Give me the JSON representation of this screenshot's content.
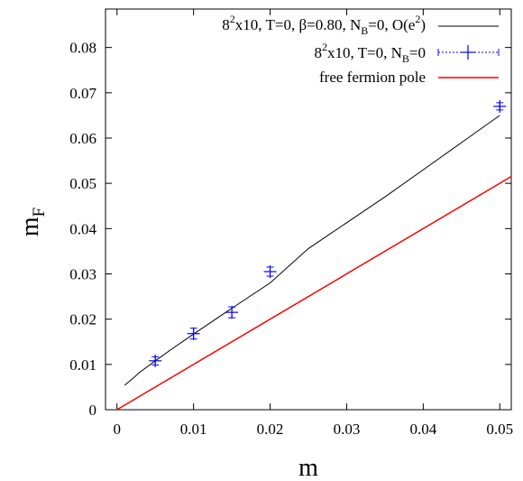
{
  "chart_data": {
    "type": "scatter",
    "title": "",
    "xlabel": "m",
    "ylabel": "m_F",
    "xlim": [
      -0.0015,
      0.0515
    ],
    "ylim": [
      0,
      0.0885
    ],
    "grid": false,
    "legend_position": "top-right",
    "x_ticks": [
      0,
      0.01,
      0.02,
      0.03,
      0.04,
      0.05
    ],
    "x_tick_labels": [
      "0",
      "0.01",
      "0.02",
      "0.03",
      "0.04",
      "0.05"
    ],
    "y_ticks": [
      0,
      0.01,
      0.02,
      0.03,
      0.04,
      0.05,
      0.06,
      0.07,
      0.08
    ],
    "y_tick_labels": [
      "0",
      "0.01",
      "0.02",
      "0.03",
      "0.04",
      "0.05",
      "0.06",
      "0.07",
      "0.08"
    ],
    "series": [
      {
        "name": "8²x10, T=0, β=0.80, N_B=0, O(e²)",
        "kind": "line",
        "color": "#000000",
        "x": [
          0.001,
          0.002,
          0.003,
          0.005,
          0.0075,
          0.01,
          0.015,
          0.02,
          0.025,
          0.03,
          0.035,
          0.04,
          0.045,
          0.05
        ],
        "y": [
          0.0054,
          0.0068,
          0.0083,
          0.0108,
          0.0138,
          0.0167,
          0.0224,
          0.028,
          0.0356,
          0.0413,
          0.047,
          0.053,
          0.059,
          0.065
        ]
      },
      {
        "name": "8²x10, T=0, N_B=0",
        "kind": "points",
        "color": "#0000ff",
        "x": [
          0.005,
          0.01,
          0.015,
          0.02,
          0.05
        ],
        "y": [
          0.0108,
          0.0168,
          0.0215,
          0.0305,
          0.067
        ],
        "yerr": [
          0.0009,
          0.0012,
          0.0012,
          0.001,
          0.0008
        ]
      },
      {
        "name": "free fermion pole",
        "kind": "line",
        "color": "#ff0000",
        "x": [
          0.0,
          0.0515
        ],
        "y": [
          0.0,
          0.0515
        ]
      }
    ]
  },
  "legend": {
    "entry1": {
      "pre": "8",
      "sup1": "2",
      "mid": "x10, T=0, β=0.80, N",
      "sub": "B",
      "post": "=0, O(e",
      "sup2": "2",
      "end": ")"
    },
    "entry2": {
      "pre": "8",
      "sup1": "2",
      "mid": "x10, T=0, N",
      "sub": "B",
      "end": "=0"
    },
    "entry3": {
      "text": "free fermion pole"
    }
  },
  "axis_titles": {
    "x": "m",
    "y_main": "m",
    "y_sub": "F"
  }
}
